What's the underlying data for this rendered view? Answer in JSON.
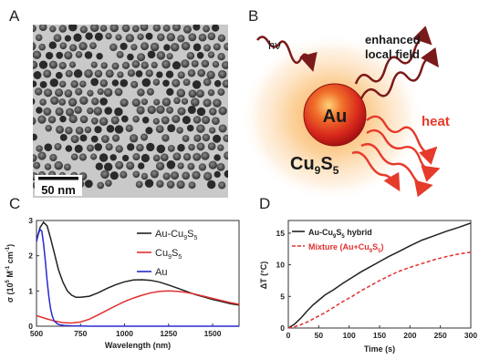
{
  "panels": {
    "a": "A",
    "b": "B",
    "c": "C",
    "d": "D"
  },
  "tem": {
    "scale_bar": "50 nm"
  },
  "schematic": {
    "hv": "hν",
    "field_line1": "enhanced",
    "field_line2": "local field",
    "core": "Au",
    "shell_main": "Cu",
    "shell_sub1": "9",
    "shell_mid": "S",
    "shell_sub2": "5",
    "heat": "heat"
  },
  "colors": {
    "hybrid": "#222222",
    "cu9s5": "#e03030",
    "au": "#2a2ad0",
    "mixture": "#e03030",
    "arrow": "#e63a2a"
  },
  "chart_data": [
    {
      "type": "line",
      "ylabel_text": "σ (10",
      "ylabel_sup": "5",
      "ylabel_mid": " M",
      "ylabel_sup2": "-1",
      "ylabel_end": " cm",
      "ylabel_sup3": "-1",
      "ylabel_close": ")",
      "xlabel": "Wavelength (nm)",
      "xlim": [
        500,
        1650
      ],
      "ylim": [
        0,
        3
      ],
      "xticks": [
        "500",
        "750",
        "1000",
        "1250",
        "1500"
      ],
      "yticks": [
        "0",
        "1",
        "2",
        "3"
      ],
      "legend": [
        {
          "main": "Au-Cu",
          "sub1": "9",
          "mid": "S",
          "sub2": "5"
        },
        {
          "main": "Cu",
          "sub1": "9",
          "mid": "S",
          "sub2": "5"
        },
        {
          "main": "Au",
          "sub1": "",
          "mid": "",
          "sub2": ""
        }
      ],
      "series": [
        {
          "x": [
            500,
            520,
            540,
            560,
            580,
            600,
            625,
            650,
            675,
            700,
            725,
            750,
            800,
            850,
            900,
            950,
            1000,
            1050,
            1100,
            1150,
            1200,
            1250,
            1300,
            1350,
            1400,
            1450,
            1500,
            1550,
            1600,
            1650
          ],
          "y": [
            2.45,
            2.8,
            2.95,
            2.85,
            2.5,
            2.1,
            1.6,
            1.25,
            1.0,
            0.88,
            0.82,
            0.82,
            0.85,
            0.95,
            1.07,
            1.18,
            1.26,
            1.31,
            1.32,
            1.3,
            1.25,
            1.17,
            1.08,
            0.99,
            0.9,
            0.83,
            0.76,
            0.7,
            0.64,
            0.6
          ]
        },
        {
          "x": [
            500,
            550,
            600,
            650,
            700,
            750,
            800,
            850,
            900,
            950,
            1000,
            1050,
            1100,
            1150,
            1200,
            1250,
            1300,
            1350,
            1400,
            1450,
            1500,
            1550,
            1600,
            1650
          ],
          "y": [
            0.3,
            0.22,
            0.15,
            0.1,
            0.09,
            0.12,
            0.2,
            0.32,
            0.45,
            0.58,
            0.7,
            0.8,
            0.88,
            0.95,
            0.99,
            1.0,
            0.99,
            0.96,
            0.91,
            0.85,
            0.79,
            0.73,
            0.67,
            0.62
          ]
        },
        {
          "x": [
            500,
            510,
            520,
            530,
            540,
            550,
            560,
            570,
            580,
            590,
            600,
            620,
            640,
            660,
            700,
            800,
            900,
            1000,
            1200,
            1400,
            1650
          ],
          "y": [
            2.4,
            2.6,
            2.75,
            2.7,
            2.35,
            1.85,
            1.3,
            0.85,
            0.5,
            0.28,
            0.15,
            0.06,
            0.03,
            0.02,
            0.01,
            0.0,
            0.0,
            0.0,
            0.0,
            0.0,
            0.0
          ]
        }
      ]
    },
    {
      "type": "line",
      "ylabel": "ΔT (°C)",
      "xlabel": "Time (s)",
      "xlim": [
        0,
        300
      ],
      "ylim": [
        0,
        17
      ],
      "xticks": [
        "0",
        "50",
        "100",
        "150",
        "200",
        "250",
        "300"
      ],
      "yticks": [
        "0",
        "5",
        "10",
        "15"
      ],
      "legend": [
        {
          "main": "Au-Cu",
          "sub1": "9",
          "mid": "S",
          "sub2": "5",
          "end": " hybrid"
        },
        {
          "main": "Mixture (Au+Cu",
          "sub1": "9",
          "mid": "S",
          "sub2": "5",
          "end": ")"
        }
      ],
      "series": [
        {
          "x": [
            0,
            10,
            20,
            30,
            40,
            50,
            60,
            75,
            90,
            105,
            120,
            135,
            150,
            165,
            180,
            200,
            220,
            240,
            260,
            280,
            300
          ],
          "y": [
            0,
            0.6,
            1.5,
            2.6,
            3.6,
            4.4,
            5.2,
            6.1,
            7.1,
            8.0,
            8.9,
            9.7,
            10.5,
            11.3,
            12.0,
            13.0,
            13.9,
            14.6,
            15.3,
            15.9,
            16.6
          ]
        },
        {
          "x": [
            0,
            10,
            20,
            30,
            40,
            50,
            60,
            75,
            90,
            105,
            120,
            135,
            150,
            165,
            180,
            200,
            220,
            240,
            260,
            280,
            300
          ],
          "y": [
            0,
            0.2,
            0.5,
            0.9,
            1.4,
            1.9,
            2.4,
            3.3,
            4.2,
            5.0,
            5.9,
            6.7,
            7.5,
            8.2,
            8.9,
            9.6,
            10.2,
            10.8,
            11.3,
            11.7,
            12.0
          ]
        }
      ]
    }
  ]
}
